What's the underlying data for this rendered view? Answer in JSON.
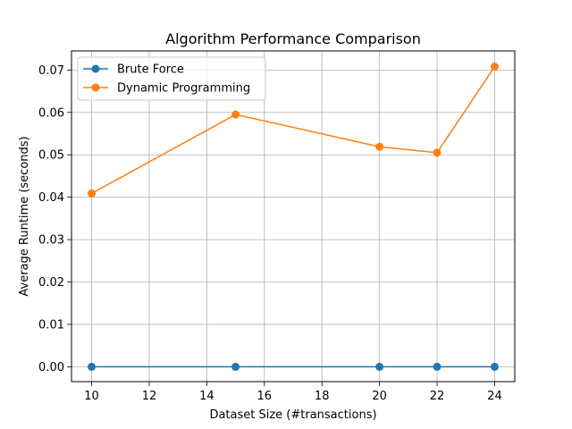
{
  "chart_data": {
    "type": "line",
    "title": "Algorithm Performance Comparison",
    "xlabel": "Dataset Size (#transactions)",
    "ylabel": "Average Runtime (seconds)",
    "x": [
      10,
      15,
      20,
      22,
      24
    ],
    "xlim": [
      9.3,
      24.7
    ],
    "ylim": [
      -0.0035,
      0.0745
    ],
    "xticks": [
      10,
      12,
      14,
      16,
      18,
      20,
      22,
      24
    ],
    "yticks": [
      0.0,
      0.01,
      0.02,
      0.03,
      0.04,
      0.05,
      0.06,
      0.07
    ],
    "ytick_labels": [
      "0.00",
      "0.01",
      "0.02",
      "0.03",
      "0.04",
      "0.05",
      "0.06",
      "0.07"
    ],
    "grid": true,
    "legend_position": "top-left",
    "series": [
      {
        "name": "Brute Force",
        "color": "#1f77b4",
        "values": [
          0.0,
          0.0,
          0.0,
          0.0,
          0.0
        ]
      },
      {
        "name": "Dynamic Programming",
        "color": "#ff7f0e",
        "values": [
          0.0409,
          0.0595,
          0.0519,
          0.0505,
          0.0708
        ]
      }
    ]
  }
}
